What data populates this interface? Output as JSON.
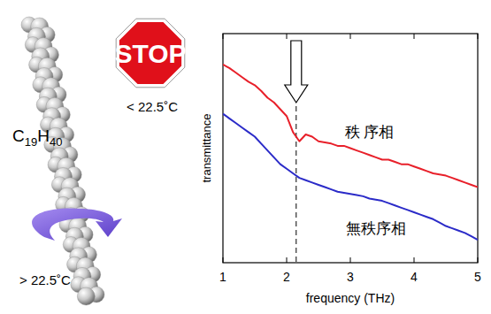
{
  "chart_data": {
    "type": "line",
    "x_label": "frequency (THz)",
    "y_label": "transmittance",
    "x": [
      1.0,
      1.1,
      1.2,
      1.3,
      1.4,
      1.5,
      1.6,
      1.7,
      1.8,
      1.9,
      2.0,
      2.1,
      2.2,
      2.3,
      2.4,
      2.5,
      2.6,
      2.7,
      2.8,
      2.9,
      3.0,
      3.1,
      3.2,
      3.3,
      3.4,
      3.5,
      3.6,
      3.7,
      3.8,
      3.9,
      4.0,
      4.1,
      4.2,
      4.3,
      4.4,
      4.5,
      4.6,
      4.7,
      4.8,
      4.9,
      5.0
    ],
    "series": [
      {
        "name": "秩 序相",
        "color": "#e8202a",
        "values": [
          0.865,
          0.85,
          0.83,
          0.81,
          0.79,
          0.775,
          0.75,
          0.72,
          0.7,
          0.67,
          0.64,
          0.57,
          0.53,
          0.56,
          0.55,
          0.53,
          0.525,
          0.52,
          0.51,
          0.51,
          0.5,
          0.49,
          0.48,
          0.47,
          0.46,
          0.45,
          0.45,
          0.44,
          0.43,
          0.43,
          0.42,
          0.41,
          0.4,
          0.39,
          0.385,
          0.38,
          0.37,
          0.36,
          0.35,
          0.34,
          0.33
        ]
      },
      {
        "name": "無秩序相",
        "color": "#2b2bc8",
        "values": [
          0.65,
          0.63,
          0.61,
          0.59,
          0.57,
          0.55,
          0.52,
          0.49,
          0.46,
          0.43,
          0.41,
          0.39,
          0.37,
          0.36,
          0.35,
          0.34,
          0.33,
          0.32,
          0.31,
          0.305,
          0.3,
          0.295,
          0.29,
          0.28,
          0.275,
          0.27,
          0.26,
          0.25,
          0.24,
          0.23,
          0.22,
          0.21,
          0.2,
          0.19,
          0.175,
          0.16,
          0.15,
          0.14,
          0.13,
          0.115,
          0.1
        ]
      }
    ],
    "xlim": [
      1,
      5
    ],
    "xticks": [
      1,
      2,
      3,
      4,
      5
    ],
    "ylim": [
      0,
      1
    ],
    "tick_labels": "x",
    "annotations": [
      {
        "x": 2.15
      }
    ]
  },
  "illustration": {
    "stop_sign": "STOP",
    "stop_label": "< 22.5˚C",
    "formula": "C19H40",
    "rotation_label": "> 22.5˚C"
  }
}
